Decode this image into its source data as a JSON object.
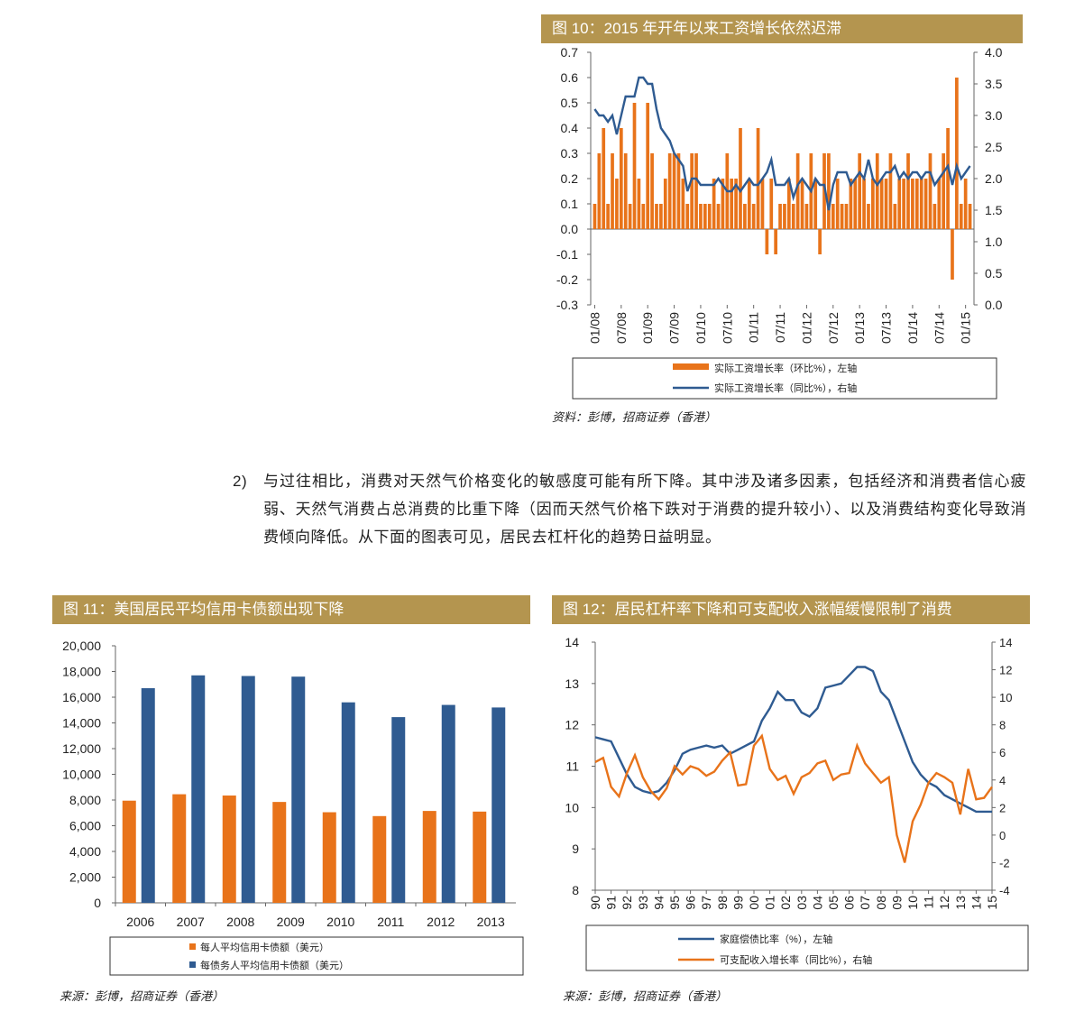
{
  "fig10": {
    "title": "图 10：2015 年开年以来工资增长依然迟滞",
    "source": "资料：彭博，招商证券（香港）",
    "chart_data": {
      "type": "bar+line",
      "left_axis": {
        "min": -0.3,
        "max": 0.7,
        "ticks": [
          "-0.3",
          "-0.2",
          "-0.1",
          "0.0",
          "0.1",
          "0.2",
          "0.3",
          "0.4",
          "0.5",
          "0.6",
          "0.7"
        ]
      },
      "right_axis": {
        "min": 0.0,
        "max": 4.0,
        "ticks": [
          "0.0",
          "0.5",
          "1.0",
          "1.5",
          "2.0",
          "2.5",
          "3.0",
          "3.5",
          "4.0"
        ]
      },
      "x_labels": [
        "01/08",
        "07/08",
        "01/09",
        "07/09",
        "01/10",
        "07/10",
        "01/11",
        "07/11",
        "01/12",
        "07/12",
        "01/13",
        "07/13",
        "01/14",
        "07/14",
        "01/15"
      ],
      "series": [
        {
          "name": "实际工资增长率（环比%），左轴",
          "kind": "bar",
          "color": "#e8731a",
          "values": [
            0.1,
            0.3,
            0.4,
            0.1,
            0.3,
            0.2,
            0.4,
            0.3,
            0.1,
            0.5,
            0.2,
            0.1,
            0.5,
            0.3,
            0.1,
            0.1,
            0.2,
            0.3,
            0.3,
            0.3,
            0.2,
            0.1,
            0.3,
            0.3,
            0.1,
            0.1,
            0.1,
            0.2,
            0.1,
            0.2,
            0.3,
            0.2,
            0.2,
            0.4,
            0.1,
            0.2,
            0.1,
            0.4,
            0.2,
            -0.1,
            0.2,
            -0.1,
            0.1,
            0.1,
            0.2,
            0.1,
            0.3,
            0.2,
            0.1,
            0.3,
            0.2,
            -0.1,
            0.3,
            0.3,
            0.1,
            0.2,
            0.1,
            0.1,
            0.2,
            0.2,
            0.3,
            0.2,
            0.1,
            0.2,
            0.3,
            0.2,
            0.2,
            0.3,
            0.1,
            0.2,
            0.2,
            0.3,
            0.2,
            0.2,
            0.2,
            0.2,
            0.3,
            0.1,
            0.2,
            0.3,
            0.4,
            -0.2,
            0.6,
            0.1,
            0.2,
            0.1
          ]
        },
        {
          "name": "实际工资增长率（同比%），右轴",
          "kind": "line",
          "color": "#2f5b91",
          "values": [
            3.1,
            3.0,
            3.0,
            2.9,
            3.0,
            2.7,
            3.0,
            3.3,
            3.3,
            3.3,
            3.6,
            3.6,
            3.5,
            3.5,
            3.1,
            2.8,
            2.7,
            2.6,
            2.4,
            2.3,
            2.2,
            1.8,
            2.0,
            2.0,
            1.9,
            1.9,
            1.9,
            1.9,
            2.0,
            1.9,
            1.8,
            1.8,
            1.9,
            1.8,
            1.9,
            2.0,
            1.9,
            1.9,
            2.0,
            2.1,
            2.3,
            1.9,
            1.9,
            1.9,
            2.0,
            1.7,
            1.9,
            2.0,
            1.9,
            1.8,
            2.0,
            1.9,
            1.9,
            1.5,
            1.9,
            2.1,
            2.1,
            2.1,
            1.9,
            2.0,
            2.1,
            2.0,
            2.3,
            2.0,
            1.9,
            2.0,
            2.1,
            2.1,
            2.2,
            2.0,
            2.1,
            2.0,
            2.1,
            2.1,
            2.0,
            2.1,
            2.1,
            1.9,
            2.0,
            2.1,
            2.2,
            1.9,
            2.2,
            2.0,
            2.1,
            2.2
          ]
        }
      ]
    }
  },
  "paragraph": {
    "num": "2)",
    "text": "与过往相比，消费对天然气价格变化的敏感度可能有所下降。其中涉及诸多因素，包括经济和消费者信心疲弱、天然气消费占总消费的比重下降（因而天然气价格下跌对于消费的提升较小）、以及消费结构变化导致消费倾向降低。从下面的图表可见，居民去杠杆化的趋势日益明显。"
  },
  "fig11": {
    "title": "图 11：美国居民平均信用卡债额出现下降",
    "source": "来源：彭博，招商证券（香港）",
    "chart_data": {
      "type": "bar",
      "categories": [
        "2006",
        "2007",
        "2008",
        "2009",
        "2010",
        "2011",
        "2012",
        "2013"
      ],
      "y_axis": {
        "min": 0,
        "max": 20000,
        "ticks": [
          "0",
          "2,000",
          "4,000",
          "6,000",
          "8,000",
          "10,000",
          "12,000",
          "14,000",
          "16,000",
          "18,000",
          "20,000"
        ]
      },
      "series": [
        {
          "name": "每人平均信用卡债额（美元）",
          "color": "#e8731a",
          "values": [
            7950,
            8450,
            8350,
            7850,
            7050,
            6750,
            7150,
            7100
          ]
        },
        {
          "name": "每债务人平均信用卡债额（美元）",
          "color": "#2f5b91",
          "values": [
            16700,
            17700,
            17650,
            17600,
            15600,
            14450,
            15400,
            15200
          ]
        }
      ]
    }
  },
  "fig12": {
    "title": "图 12：居民杠杆率下降和可支配收入涨幅缓慢限制了消费",
    "source": "来源：彭博，招商证券（香港）",
    "chart_data": {
      "type": "line",
      "x_labels": [
        "90",
        "91",
        "92",
        "93",
        "94",
        "95",
        "96",
        "97",
        "98",
        "99",
        "00",
        "01",
        "02",
        "03",
        "04",
        "05",
        "06",
        "07",
        "08",
        "09",
        "10",
        "11",
        "12",
        "13",
        "14",
        "15"
      ],
      "left_axis": {
        "min": 8,
        "max": 14,
        "ticks": [
          "8",
          "9",
          "10",
          "11",
          "12",
          "13",
          "14"
        ]
      },
      "right_axis": {
        "min": -4,
        "max": 14,
        "ticks": [
          "-4",
          "-2",
          "0",
          "2",
          "4",
          "6",
          "8",
          "10",
          "12",
          "14"
        ]
      },
      "series": [
        {
          "name": "家庭偿债比率（%），左轴",
          "axis": "left",
          "color": "#2f5b91",
          "x": [
            90,
            90.5,
            91,
            91.5,
            92,
            92.5,
            93,
            93.5,
            94,
            94.5,
            95,
            95.5,
            96,
            96.5,
            97,
            97.5,
            98,
            98.5,
            99,
            99.5,
            100,
            100.5,
            101,
            101.5,
            102,
            102.5,
            103,
            103.5,
            104,
            104.5,
            105,
            105.5,
            106,
            106.5,
            107,
            107.5,
            108,
            108.5,
            109,
            109.5,
            110,
            110.5,
            111,
            111.5,
            112,
            112.5,
            113,
            113.5,
            114,
            114.5,
            115
          ],
          "values": [
            11.7,
            11.65,
            11.6,
            11.2,
            10.8,
            10.5,
            10.4,
            10.35,
            10.4,
            10.6,
            10.9,
            11.3,
            11.4,
            11.45,
            11.5,
            11.45,
            11.5,
            11.3,
            11.4,
            11.5,
            11.6,
            12.1,
            12.4,
            12.8,
            12.6,
            12.6,
            12.3,
            12.2,
            12.4,
            12.9,
            12.95,
            13.0,
            13.2,
            13.4,
            13.4,
            13.3,
            12.8,
            12.6,
            12.1,
            11.6,
            11.1,
            10.8,
            10.6,
            10.5,
            10.3,
            10.2,
            10.1,
            10.0,
            9.9,
            9.9,
            9.9
          ]
        },
        {
          "name": "可支配收入增长率（同比%），右轴",
          "axis": "right",
          "color": "#e8731a",
          "x": [
            90,
            90.5,
            91,
            91.5,
            92,
            92.5,
            93,
            93.5,
            94,
            94.5,
            95,
            95.5,
            96,
            96.5,
            97,
            97.5,
            98,
            98.5,
            99,
            99.5,
            100,
            100.5,
            101,
            101.5,
            102,
            102.5,
            103,
            103.5,
            104,
            104.5,
            105,
            105.5,
            106,
            106.5,
            107,
            107.5,
            108,
            108.5,
            109,
            109.5,
            110,
            110.5,
            111,
            111.5,
            112,
            112.5,
            113,
            113.5,
            114,
            114.5,
            115
          ],
          "values": [
            5.3,
            5.6,
            3.5,
            2.8,
            4.5,
            5.8,
            4.2,
            3.2,
            2.6,
            3.4,
            5.0,
            4.4,
            5.0,
            4.8,
            4.3,
            4.6,
            5.4,
            6.0,
            3.6,
            3.7,
            6.5,
            7.2,
            4.8,
            4.0,
            4.3,
            3.0,
            4.2,
            4.5,
            5.2,
            5.4,
            4.0,
            4.4,
            4.5,
            6.5,
            5.2,
            4.5,
            3.8,
            4.2,
            0.0,
            -2.0,
            1.0,
            2.2,
            3.8,
            4.5,
            4.2,
            3.8,
            1.5,
            4.8,
            2.6,
            2.7,
            3.5
          ]
        }
      ]
    }
  }
}
